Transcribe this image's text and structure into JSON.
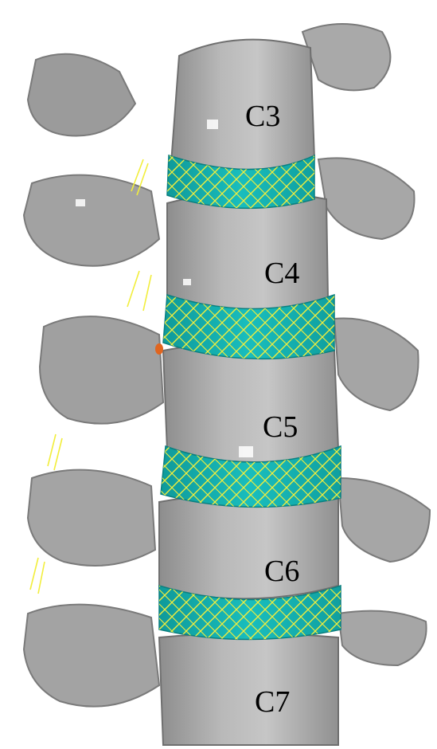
{
  "figure": {
    "vertebrae": [
      {
        "id": "c3",
        "label": "C3"
      },
      {
        "id": "c4",
        "label": "C4"
      },
      {
        "id": "c5",
        "label": "C5"
      },
      {
        "id": "c6",
        "label": "C6"
      },
      {
        "id": "c7",
        "label": "C7"
      }
    ],
    "colors": {
      "bone": "#a8a8a8",
      "bone_light": "#c8c8c8",
      "bone_dark": "#6f6f6f",
      "disc": "#16b4b4",
      "fiber": "#f2ee3c",
      "background": "#ffffff"
    }
  }
}
